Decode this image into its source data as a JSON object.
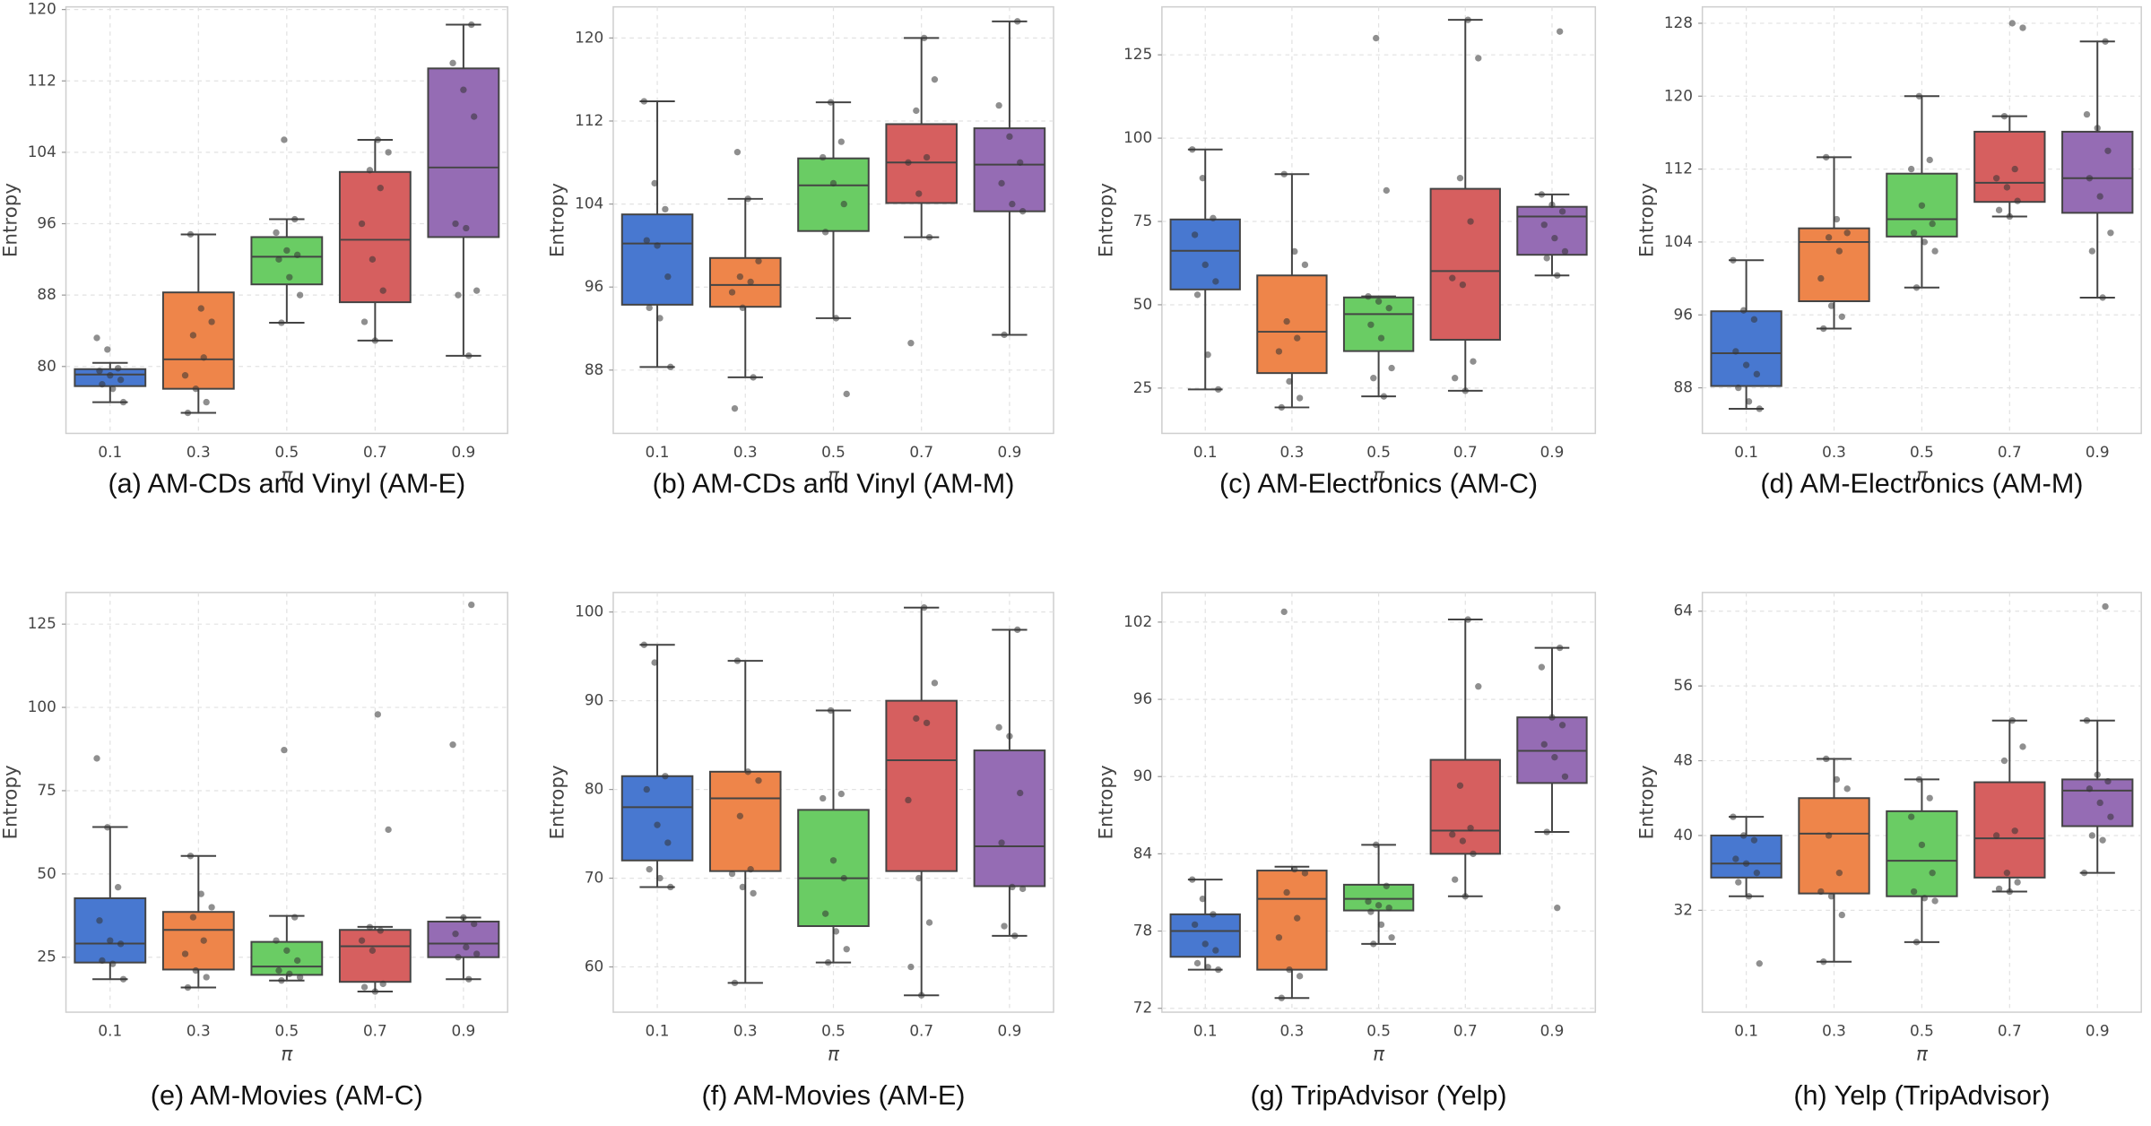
{
  "chart_data": [
    {
      "type": "box",
      "title": "(a) AM-CDs and Vinyl (AM-E)",
      "xlabel": "π",
      "ylabel": "Entropy",
      "categories": [
        "0.1",
        "0.3",
        "0.5",
        "0.7",
        "0.9"
      ],
      "colors": [
        "#4878d0",
        "#ee854a",
        "#6acc64",
        "#d65f5f",
        "#956cb4"
      ],
      "grid": true,
      "ylim": [
        72.5,
        120.3
      ],
      "yticks": [
        80,
        88,
        96,
        104,
        112,
        120
      ],
      "boxes": [
        {
          "whislo": 76,
          "q1": 77.8,
          "med": 79.1,
          "q3": 79.7,
          "whishi": 80.4
        },
        {
          "whislo": 74.8,
          "q1": 77.5,
          "med": 80.8,
          "q3": 88.3,
          "whishi": 94.8
        },
        {
          "whislo": 84.9,
          "q1": 89.2,
          "med": 92.3,
          "q3": 94.5,
          "whishi": 96.5
        },
        {
          "whislo": 82.9,
          "q1": 87.2,
          "med": 94.2,
          "q3": 101.8,
          "whishi": 105.4
        },
        {
          "whislo": 81.2,
          "q1": 94.5,
          "med": 102.3,
          "q3": 113.4,
          "whishi": 118.3
        }
      ],
      "points": [
        [
          83.2,
          81.9,
          79.8,
          79.5,
          79,
          78.5,
          78,
          77.5,
          76
        ],
        [
          94.8,
          86.5,
          85,
          83.5,
          81,
          79,
          77.5,
          76,
          74.8
        ],
        [
          105.4,
          96.5,
          95,
          93,
          92.5,
          92,
          90,
          88,
          84.9
        ],
        [
          105.4,
          104,
          102,
          100,
          96,
          92,
          88.5,
          85,
          82.9
        ],
        [
          118.3,
          114,
          111,
          108,
          96,
          95.5,
          88.5,
          88,
          81.2
        ]
      ]
    },
    {
      "type": "box",
      "title": "(b) AM-CDs and Vinyl (AM-M)",
      "xlabel": "π",
      "ylabel": "Entropy",
      "categories": [
        "0.1",
        "0.3",
        "0.5",
        "0.7",
        "0.9"
      ],
      "colors": [
        "#4878d0",
        "#ee854a",
        "#6acc64",
        "#d65f5f",
        "#956cb4"
      ],
      "grid": true,
      "ylim": [
        81.9,
        123
      ],
      "yticks": [
        88,
        96,
        104,
        112,
        120
      ],
      "boxes": [
        {
          "whislo": 88.3,
          "q1": 94.3,
          "med": 100.2,
          "q3": 103,
          "whishi": 113.9
        },
        {
          "whislo": 87.3,
          "q1": 94.1,
          "med": 96.2,
          "q3": 98.8,
          "whishi": 104.5
        },
        {
          "whislo": 93,
          "q1": 101.4,
          "med": 105.8,
          "q3": 108.4,
          "whishi": 113.8
        },
        {
          "whislo": 100.8,
          "q1": 104.1,
          "med": 108,
          "q3": 111.7,
          "whishi": 120
        },
        {
          "whislo": 91.4,
          "q1": 103.3,
          "med": 107.8,
          "q3": 111.3,
          "whishi": 121.6
        }
      ],
      "points": [
        [
          113.9,
          106,
          103.5,
          100.5,
          100,
          97,
          94,
          93,
          88.3
        ],
        [
          109,
          104.5,
          98.5,
          97,
          96.5,
          95.5,
          94,
          87.3,
          84.3
        ],
        [
          113.8,
          110,
          108.5,
          106,
          104,
          101.3,
          93,
          85.7
        ],
        [
          120,
          116,
          113,
          108.5,
          108,
          105,
          100.8,
          90.6
        ],
        [
          121.6,
          113.5,
          110.5,
          108,
          106,
          104,
          103.3,
          91.4
        ]
      ]
    },
    {
      "type": "box",
      "title": "(c) AM-Electronics (AM-C)",
      "xlabel": "π",
      "ylabel": "Entropy",
      "categories": [
        "0.1",
        "0.3",
        "0.5",
        "0.7",
        "0.9"
      ],
      "colors": [
        "#4878d0",
        "#ee854a",
        "#6acc64",
        "#d65f5f",
        "#956cb4"
      ],
      "grid": true,
      "ylim": [
        11.4,
        139.4
      ],
      "yticks": [
        25,
        50,
        75,
        100,
        125
      ],
      "boxes": [
        {
          "whislo": 24.6,
          "q1": 54.6,
          "med": 66.2,
          "q3": 75.6,
          "whishi": 96.6
        },
        {
          "whislo": 19.2,
          "q1": 29.5,
          "med": 41.9,
          "q3": 58.8,
          "whishi": 89.2
        },
        {
          "whislo": 22.5,
          "q1": 36.1,
          "med": 47.2,
          "q3": 52.2,
          "whishi": 52.5
        },
        {
          "whislo": 24.2,
          "q1": 39.5,
          "med": 60.1,
          "q3": 84.8,
          "whishi": 135.5
        },
        {
          "whislo": 58.8,
          "q1": 65,
          "med": 76.5,
          "q3": 79.4,
          "whishi": 83.1
        }
      ],
      "points": [
        [
          96.6,
          88,
          76,
          71,
          62,
          57,
          53,
          35,
          24.6
        ],
        [
          89.2,
          66,
          62,
          45,
          40,
          36,
          27,
          22,
          19.2
        ],
        [
          130,
          84.3,
          52.5,
          51,
          49,
          44,
          40,
          31,
          28,
          22.5
        ],
        [
          135.5,
          124,
          88,
          75,
          58,
          56,
          33,
          28,
          24.2
        ],
        [
          132,
          83.1,
          80,
          78,
          74,
          70,
          66,
          64,
          58.8
        ]
      ]
    },
    {
      "type": "box",
      "title": "(d) AM-Electronics (AM-M)",
      "xlabel": "π",
      "ylabel": "Entropy",
      "categories": [
        "0.1",
        "0.3",
        "0.5",
        "0.7",
        "0.9"
      ],
      "colors": [
        "#4878d0",
        "#ee854a",
        "#6acc64",
        "#d65f5f",
        "#956cb4"
      ],
      "grid": true,
      "ylim": [
        83,
        129.8
      ],
      "yticks": [
        88,
        96,
        104,
        112,
        120,
        128
      ],
      "boxes": [
        {
          "whislo": 85.7,
          "q1": 88.2,
          "med": 91.8,
          "q3": 96.4,
          "whishi": 102
        },
        {
          "whislo": 94.5,
          "q1": 97.5,
          "med": 104,
          "q3": 105.5,
          "whishi": 113.3
        },
        {
          "whislo": 99,
          "q1": 104.6,
          "med": 106.5,
          "q3": 111.5,
          "whishi": 120
        },
        {
          "whislo": 106.8,
          "q1": 108.4,
          "med": 110.5,
          "q3": 116.1,
          "whishi": 117.8
        },
        {
          "whislo": 97.9,
          "q1": 107.2,
          "med": 111,
          "q3": 116.1,
          "whishi": 126
        }
      ],
      "points": [
        [
          102,
          96.5,
          95.5,
          92,
          90.5,
          89.5,
          88,
          86.5,
          85.7
        ],
        [
          113.3,
          106.5,
          105,
          104.5,
          103,
          100,
          97,
          95.8,
          94.5
        ],
        [
          120,
          113,
          112,
          108,
          106,
          105,
          104,
          103,
          99
        ],
        [
          128,
          127.5,
          117.8,
          112,
          111,
          110,
          108.5,
          107.5,
          106.8
        ],
        [
          126,
          118,
          116.5,
          114,
          111,
          109,
          105,
          103,
          97.9
        ]
      ]
    },
    {
      "type": "box",
      "title": "(e) AM-Movies (AM-C)",
      "xlabel": "π",
      "ylabel": "Entropy",
      "categories": [
        "0.1",
        "0.3",
        "0.5",
        "0.7",
        "0.9"
      ],
      "colors": [
        "#4878d0",
        "#ee854a",
        "#6acc64",
        "#d65f5f",
        "#956cb4"
      ],
      "grid": true,
      "ylim": [
        8.5,
        134.5
      ],
      "yticks": [
        25,
        50,
        75,
        100,
        125
      ],
      "boxes": [
        {
          "whislo": 18.4,
          "q1": 23.4,
          "med": 29.1,
          "q3": 42.7,
          "whishi": 64.1
        },
        {
          "whislo": 15.9,
          "q1": 21.3,
          "med": 33.2,
          "q3": 38.6,
          "whishi": 55.4
        },
        {
          "whislo": 18,
          "q1": 19.7,
          "med": 22.2,
          "q3": 29.6,
          "whishi": 37.4
        },
        {
          "whislo": 14.7,
          "q1": 17.6,
          "med": 28.3,
          "q3": 33.2,
          "whishi": 34.1
        },
        {
          "whislo": 18.4,
          "q1": 25,
          "med": 29.1,
          "q3": 35.7,
          "whishi": 36.9
        }
      ],
      "points": [
        [
          84.7,
          64,
          46,
          36,
          30,
          29,
          24,
          23,
          18.4
        ],
        [
          55.4,
          44,
          40,
          37,
          30,
          26,
          21,
          19,
          15.9
        ],
        [
          87.2,
          37,
          30,
          27,
          24,
          21,
          20,
          19,
          18
        ],
        [
          97.9,
          63.3,
          34,
          33,
          30,
          27,
          17,
          16,
          14.7
        ],
        [
          130.8,
          88.8,
          36.9,
          35,
          32,
          28,
          26,
          25,
          18.4
        ]
      ]
    },
    {
      "type": "box",
      "title": "(f) AM-Movies (AM-E)",
      "xlabel": "π",
      "ylabel": "Entropy",
      "categories": [
        "0.1",
        "0.3",
        "0.5",
        "0.7",
        "0.9"
      ],
      "colors": [
        "#4878d0",
        "#ee854a",
        "#6acc64",
        "#d65f5f",
        "#956cb4"
      ],
      "grid": true,
      "ylim": [
        54.9,
        102.2
      ],
      "yticks": [
        60,
        70,
        80,
        90,
        100
      ],
      "boxes": [
        {
          "whislo": 69,
          "q1": 72,
          "med": 78,
          "q3": 81.5,
          "whishi": 96.3
        },
        {
          "whislo": 58.2,
          "q1": 70.8,
          "med": 79,
          "q3": 82,
          "whishi": 94.5
        },
        {
          "whislo": 60.5,
          "q1": 64.6,
          "med": 70,
          "q3": 77.7,
          "whishi": 88.9
        },
        {
          "whislo": 56.8,
          "q1": 70.8,
          "med": 83.3,
          "q3": 90,
          "whishi": 100.5
        },
        {
          "whislo": 63.5,
          "q1": 69.1,
          "med": 73.6,
          "q3": 84.4,
          "whishi": 98
        }
      ],
      "points": [
        [
          96.3,
          94.3,
          81.5,
          80,
          76,
          74,
          71,
          70,
          69
        ],
        [
          94.5,
          82,
          81,
          77,
          71,
          70.5,
          69,
          68.3,
          58.2
        ],
        [
          88.9,
          79.5,
          79,
          72,
          70,
          66,
          64,
          62,
          60.5
        ],
        [
          100.5,
          92,
          88,
          87.5,
          78.8,
          70,
          65,
          60,
          56.8
        ],
        [
          98,
          87,
          86,
          79.6,
          74,
          69,
          68.8,
          64.6,
          63.5
        ]
      ]
    },
    {
      "type": "box",
      "title": "(g) TripAdvisor (Yelp)",
      "xlabel": "π",
      "ylabel": "Entropy",
      "categories": [
        "0.1",
        "0.3",
        "0.5",
        "0.7",
        "0.9"
      ],
      "colors": [
        "#4878d0",
        "#ee854a",
        "#6acc64",
        "#d65f5f",
        "#956cb4"
      ],
      "grid": true,
      "ylim": [
        71.7,
        104.3
      ],
      "yticks": [
        72,
        78,
        84,
        90,
        96,
        102
      ],
      "boxes": [
        {
          "whislo": 75,
          "q1": 76,
          "med": 78,
          "q3": 79.3,
          "whishi": 82
        },
        {
          "whislo": 72.8,
          "q1": 75,
          "med": 80.5,
          "q3": 82.7,
          "whishi": 83
        },
        {
          "whislo": 77,
          "q1": 79.6,
          "med": 80.5,
          "q3": 81.6,
          "whishi": 84.7
        },
        {
          "whislo": 80.7,
          "q1": 84,
          "med": 85.8,
          "q3": 91.3,
          "whishi": 102.2
        },
        {
          "whislo": 85.7,
          "q1": 89.5,
          "med": 92,
          "q3": 94.6,
          "whishi": 100
        }
      ],
      "points": [
        [
          82,
          80.5,
          79.3,
          78.5,
          77,
          76.5,
          75.5,
          75.2,
          75
        ],
        [
          102.8,
          82.8,
          82.5,
          81,
          79,
          77.5,
          75,
          74.5,
          72.8
        ],
        [
          84.7,
          81.5,
          80.3,
          80,
          79.8,
          79.5,
          78.5,
          77.5,
          77
        ],
        [
          102.2,
          97,
          89.3,
          86,
          85.5,
          85,
          84,
          82,
          80.7
        ],
        [
          100,
          98.5,
          94.6,
          94,
          92.5,
          91.5,
          90,
          85.7,
          79.8
        ]
      ]
    },
    {
      "type": "box",
      "title": "(h) Yelp (TripAdvisor)",
      "xlabel": "π",
      "ylabel": "Entropy",
      "categories": [
        "0.1",
        "0.3",
        "0.5",
        "0.7",
        "0.9"
      ],
      "colors": [
        "#4878d0",
        "#ee854a",
        "#6acc64",
        "#d65f5f",
        "#956cb4"
      ],
      "grid": true,
      "ylim": [
        21.1,
        66
      ],
      "yticks": [
        32,
        40,
        48,
        56,
        64
      ],
      "boxes": [
        {
          "whislo": 33.5,
          "q1": 35.5,
          "med": 37,
          "q3": 40,
          "whishi": 42
        },
        {
          "whislo": 26.5,
          "q1": 33.8,
          "med": 40.2,
          "q3": 44,
          "whishi": 48.2
        },
        {
          "whislo": 28.6,
          "q1": 33.5,
          "med": 37.3,
          "q3": 42.6,
          "whishi": 46
        },
        {
          "whislo": 34,
          "q1": 35.5,
          "med": 39.7,
          "q3": 45.7,
          "whishi": 52.3
        },
        {
          "whislo": 36,
          "q1": 41,
          "med": 44.8,
          "q3": 46,
          "whishi": 52.3
        }
      ],
      "points": [
        [
          42,
          40,
          39.5,
          37.5,
          37,
          36,
          35,
          33.5,
          26.3
        ],
        [
          48.2,
          46,
          45,
          40,
          36,
          34,
          33.5,
          31.5,
          26.5
        ],
        [
          46,
          44,
          42,
          39,
          36,
          34,
          33.3,
          33,
          28.6
        ],
        [
          52.3,
          49.5,
          48,
          40.5,
          40,
          36,
          35,
          34.3,
          34
        ],
        [
          64.5,
          52.3,
          46.5,
          45.8,
          45,
          43.5,
          42,
          40,
          39.5,
          36
        ]
      ]
    }
  ]
}
